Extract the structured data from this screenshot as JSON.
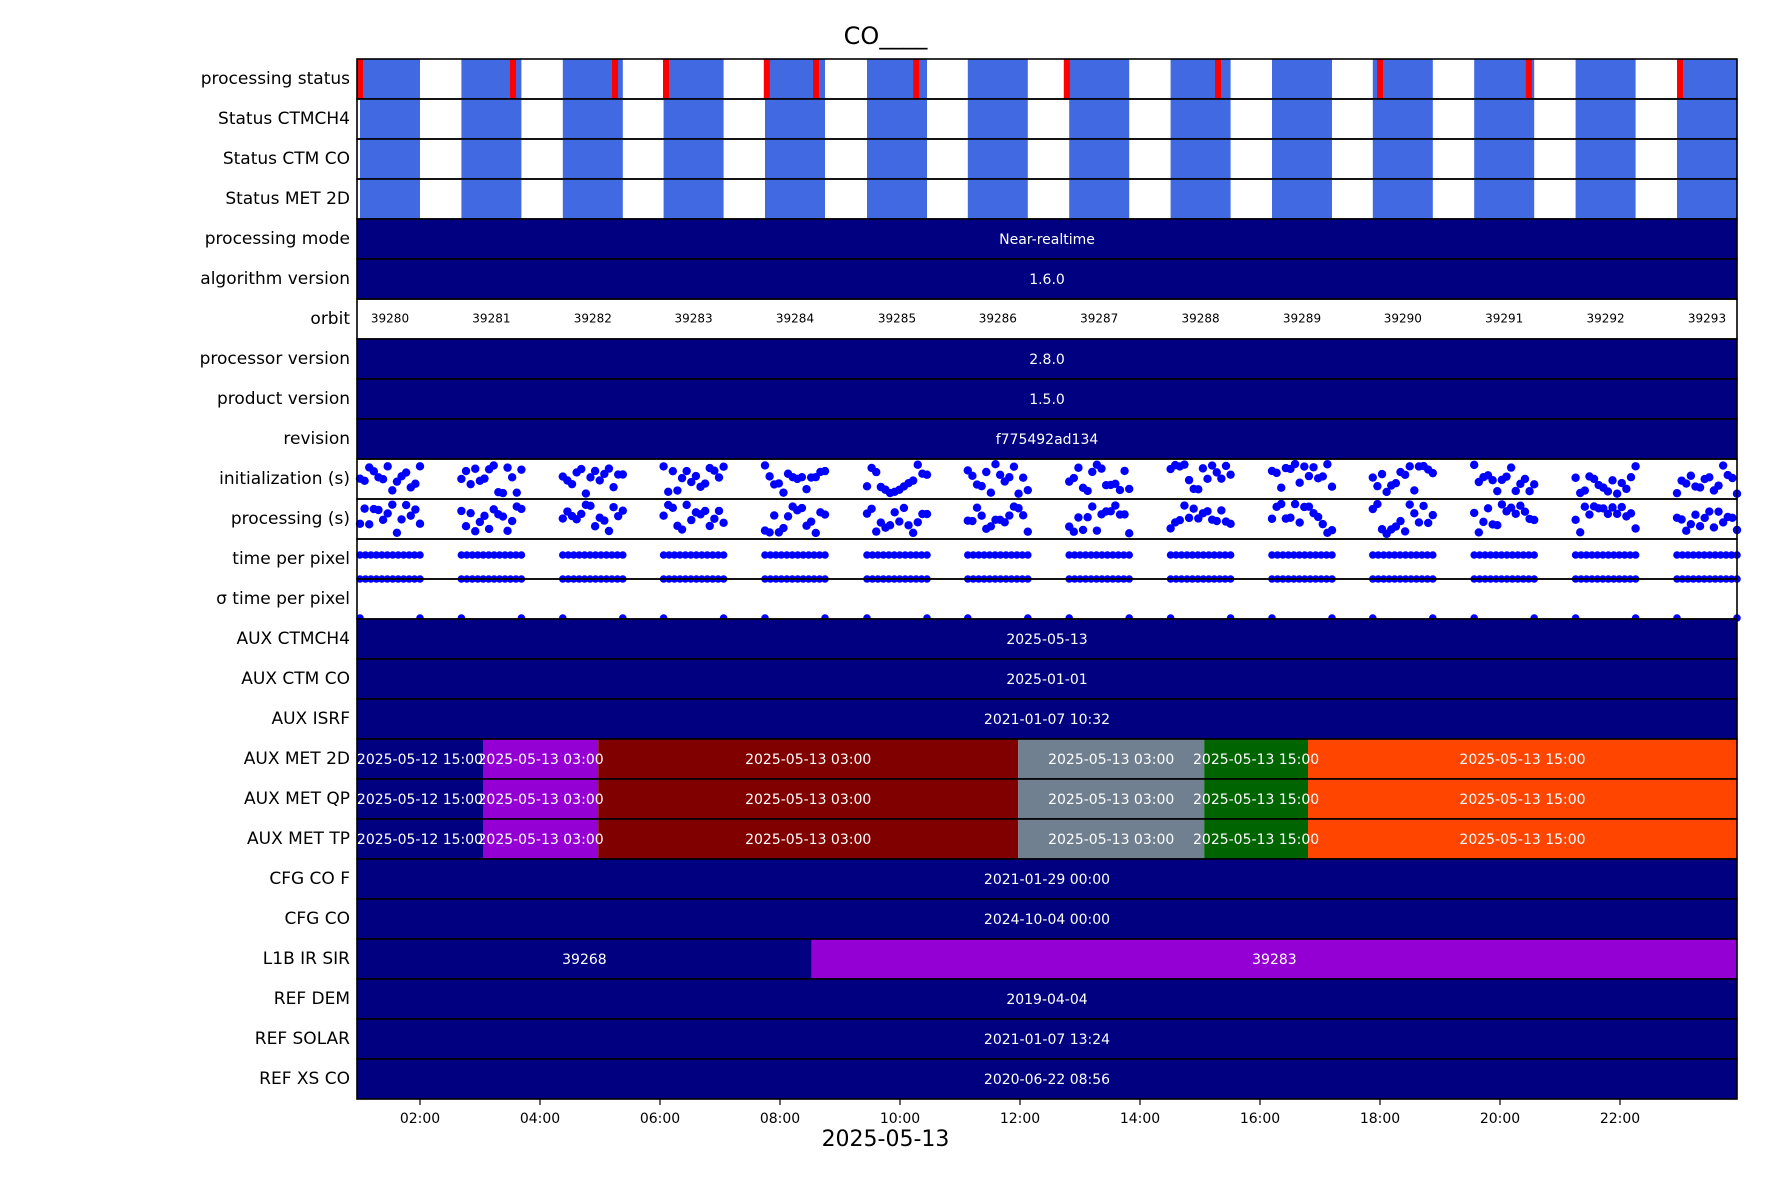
{
  "chart_data": {
    "type": "timeline",
    "title": "CO____",
    "xlabel": "2025-05-13",
    "x_range": [
      "2025-05-13 00:57",
      "2025-05-13 23:57"
    ],
    "x_ticks": [
      "02:00",
      "04:00",
      "06:00",
      "08:00",
      "10:00",
      "12:00",
      "14:00",
      "16:00",
      "18:00",
      "20:00",
      "22:00"
    ],
    "x_tick_hours": [
      2,
      4,
      6,
      8,
      10,
      12,
      14,
      16,
      18,
      20,
      22
    ],
    "orbit_starts_hour": [
      1.0,
      2.69,
      4.38,
      6.06,
      7.75,
      9.45,
      11.13,
      12.82,
      14.51,
      16.2,
      17.88,
      19.57,
      21.26,
      22.95
    ],
    "colors": {
      "navy": "#000080",
      "royalblue": "#4169e1",
      "red": "#ff0000",
      "violet": "#9400d3",
      "maroon": "#800000",
      "slategray": "#708090",
      "darkgreen": "#006400",
      "orangered": "#ff4500",
      "points": "#0000ff"
    },
    "rows": [
      {
        "label": "processing status",
        "kind": "status",
        "fail_orbits": [
          0,
          1,
          2,
          3,
          4,
          5,
          6,
          7,
          8,
          9,
          10,
          11,
          12,
          13
        ]
      },
      {
        "label": "Status CTMCH4",
        "kind": "status"
      },
      {
        "label": "Status CTM CO",
        "kind": "status"
      },
      {
        "label": "Status MET 2D",
        "kind": "status"
      },
      {
        "label": "processing mode",
        "kind": "band",
        "segments": [
          {
            "text": "Near-realtime",
            "color": "navy"
          }
        ]
      },
      {
        "label": "algorithm version",
        "kind": "band",
        "segments": [
          {
            "text": "1.6.0",
            "color": "navy"
          }
        ]
      },
      {
        "label": "orbit",
        "kind": "orbit",
        "orbits": [
          "39280",
          "39281",
          "39282",
          "39283",
          "39284",
          "39285",
          "39286",
          "39287",
          "39288",
          "39289",
          "39290",
          "39291",
          "39292",
          "39293"
        ]
      },
      {
        "label": "processor version",
        "kind": "band",
        "segments": [
          {
            "text": "2.8.0",
            "color": "navy"
          }
        ]
      },
      {
        "label": "product version",
        "kind": "band",
        "segments": [
          {
            "text": "1.5.0",
            "color": "navy"
          }
        ]
      },
      {
        "label": "revision",
        "kind": "band",
        "segments": [
          {
            "text": "f775492ad134",
            "color": "navy"
          }
        ]
      },
      {
        "label": "initialization (s)",
        "kind": "scatter"
      },
      {
        "label": "processing (s)",
        "kind": "scatter"
      },
      {
        "label": "time per pixel",
        "kind": "twolevel"
      },
      {
        "label": "σ time per pixel",
        "kind": "sigma"
      },
      {
        "label": "AUX CTMCH4",
        "kind": "band",
        "segments": [
          {
            "text": "2025-05-13",
            "color": "navy"
          }
        ]
      },
      {
        "label": "AUX CTM CO",
        "kind": "band",
        "segments": [
          {
            "text": "2025-01-01",
            "color": "navy"
          }
        ]
      },
      {
        "label": "AUX ISRF",
        "kind": "band",
        "segments": [
          {
            "text": "2021-01-07 10:32",
            "color": "navy"
          }
        ]
      },
      {
        "label": "AUX MET 2D",
        "kind": "band",
        "segments": [
          {
            "text": "2025-05-12 15:00",
            "color": "navy",
            "from": 0.95,
            "to": 3.05
          },
          {
            "text": "2025-05-13 03:00",
            "color": "violet",
            "from": 3.05,
            "to": 4.97
          },
          {
            "text": "2025-05-13 03:00",
            "color": "maroon",
            "from": 4.97,
            "to": 11.97
          },
          {
            "text": "2025-05-13 03:00",
            "color": "slategray",
            "from": 11.97,
            "to": 15.07
          },
          {
            "text": "2025-05-13 15:00",
            "color": "darkgreen",
            "from": 15.07,
            "to": 16.8
          },
          {
            "text": "2025-05-13 15:00",
            "color": "orangered",
            "from": 16.8,
            "to": 23.95
          }
        ]
      },
      {
        "label": "AUX MET QP",
        "kind": "band",
        "segments": [
          {
            "text": "2025-05-12 15:00",
            "color": "navy",
            "from": 0.95,
            "to": 3.05
          },
          {
            "text": "2025-05-13 03:00",
            "color": "violet",
            "from": 3.05,
            "to": 4.97
          },
          {
            "text": "2025-05-13 03:00",
            "color": "maroon",
            "from": 4.97,
            "to": 11.97
          },
          {
            "text": "2025-05-13 03:00",
            "color": "slategray",
            "from": 11.97,
            "to": 15.07
          },
          {
            "text": "2025-05-13 15:00",
            "color": "darkgreen",
            "from": 15.07,
            "to": 16.8
          },
          {
            "text": "2025-05-13 15:00",
            "color": "orangered",
            "from": 16.8,
            "to": 23.95
          }
        ]
      },
      {
        "label": "AUX MET TP",
        "kind": "band",
        "segments": [
          {
            "text": "2025-05-12 15:00",
            "color": "navy",
            "from": 0.95,
            "to": 3.05
          },
          {
            "text": "2025-05-13 03:00",
            "color": "violet",
            "from": 3.05,
            "to": 4.97
          },
          {
            "text": "2025-05-13 03:00",
            "color": "maroon",
            "from": 4.97,
            "to": 11.97
          },
          {
            "text": "2025-05-13 03:00",
            "color": "slategray",
            "from": 11.97,
            "to": 15.07
          },
          {
            "text": "2025-05-13 15:00",
            "color": "darkgreen",
            "from": 15.07,
            "to": 16.8
          },
          {
            "text": "2025-05-13 15:00",
            "color": "orangered",
            "from": 16.8,
            "to": 23.95
          }
        ]
      },
      {
        "label": "CFG CO   F",
        "kind": "band",
        "segments": [
          {
            "text": "2021-01-29 00:00",
            "color": "navy"
          }
        ]
      },
      {
        "label": "CFG CO",
        "kind": "band",
        "segments": [
          {
            "text": "2024-10-04 00:00",
            "color": "navy"
          }
        ]
      },
      {
        "label": "L1B IR SIR",
        "kind": "band",
        "segments": [
          {
            "text": "39268",
            "color": "navy",
            "from": 0.95,
            "to": 8.53
          },
          {
            "text": "39283",
            "color": "violet",
            "from": 8.53,
            "to": 23.95
          }
        ]
      },
      {
        "label": "REF DEM",
        "kind": "band",
        "segments": [
          {
            "text": "2019-04-04",
            "color": "navy"
          }
        ]
      },
      {
        "label": "REF SOLAR",
        "kind": "band",
        "segments": [
          {
            "text": "2021-01-07 13:24",
            "color": "navy"
          }
        ]
      },
      {
        "label": "REF XS  CO",
        "kind": "band",
        "segments": [
          {
            "text": "2020-06-22 08:56",
            "color": "navy"
          }
        ]
      }
    ]
  }
}
